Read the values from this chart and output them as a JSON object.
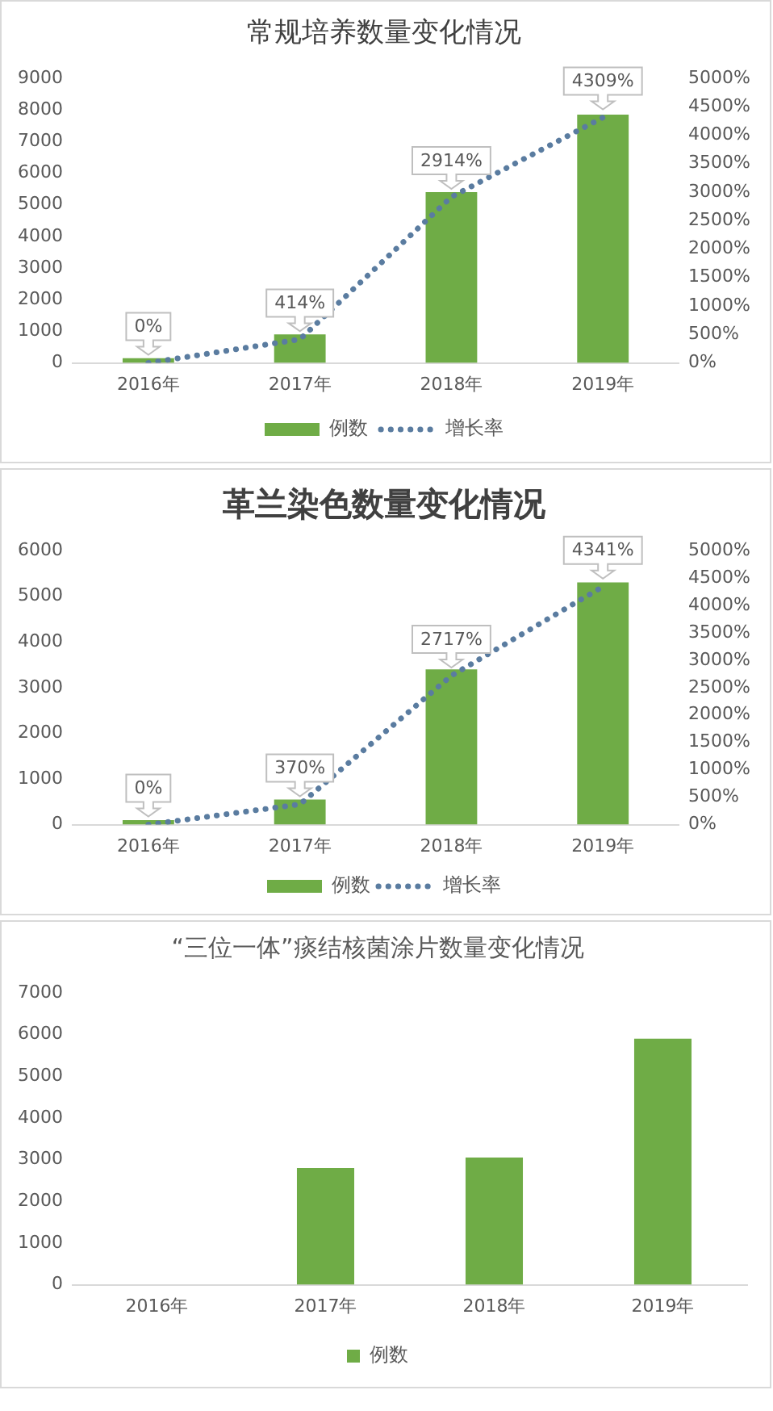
{
  "chart_data": [
    {
      "type": "bar",
      "title": "常规培养数量变化情况",
      "categories": [
        "2016年",
        "2017年",
        "2018年",
        "2019年"
      ],
      "series": [
        {
          "name": "例数",
          "color": "#6fac46",
          "values": [
            150,
            900,
            5400,
            7850
          ]
        },
        {
          "name": "增长率",
          "type": "line",
          "axis": "y2",
          "color": "#5a7ca0",
          "values": [
            0,
            414,
            2914,
            4309
          ],
          "value_labels": [
            "0%",
            "414%",
            "2914%",
            "4309%"
          ]
        }
      ],
      "ylim": [
        0,
        9000
      ],
      "yticks": [
        0,
        1000,
        2000,
        3000,
        4000,
        5000,
        6000,
        7000,
        8000,
        9000
      ],
      "y2lim": [
        0,
        5000
      ],
      "y2ticks": [
        {
          "value": 0,
          "label": "0%"
        },
        {
          "value": 500,
          "label": "500%"
        },
        {
          "value": 1000,
          "label": "1000%"
        },
        {
          "value": 1500,
          "label": "1500%"
        },
        {
          "value": 2000,
          "label": "2000%"
        },
        {
          "value": 2500,
          "label": "2500%"
        },
        {
          "value": 3000,
          "label": "3000%"
        },
        {
          "value": 3500,
          "label": "3500%"
        },
        {
          "value": 4000,
          "label": "4000%"
        },
        {
          "value": 4500,
          "label": "4500%"
        },
        {
          "value": 5000,
          "label": "5000%"
        }
      ],
      "grid": false,
      "legend": "bottom",
      "marker": "none",
      "line_style": "dotted"
    },
    {
      "type": "bar",
      "title": "革兰染色数量变化情况",
      "categories": [
        "2016年",
        "2017年",
        "2018年",
        "2019年"
      ],
      "series": [
        {
          "name": "例数",
          "color": "#6fac46",
          "values": [
            100,
            550,
            3400,
            5300
          ]
        },
        {
          "name": "增长率",
          "type": "line",
          "axis": "y2",
          "color": "#5a7ca0",
          "values": [
            0,
            370,
            2717,
            4341
          ],
          "value_labels": [
            "0%",
            "370%",
            "2717%",
            "4341%"
          ]
        }
      ],
      "ylim": [
        0,
        6000
      ],
      "yticks": [
        0,
        1000,
        2000,
        3000,
        4000,
        5000,
        6000
      ],
      "y2lim": [
        0,
        5000
      ],
      "y2ticks": [
        {
          "value": 0,
          "label": "0%"
        },
        {
          "value": 500,
          "label": "500%"
        },
        {
          "value": 1000,
          "label": "1000%"
        },
        {
          "value": 1500,
          "label": "1500%"
        },
        {
          "value": 2000,
          "label": "2000%"
        },
        {
          "value": 2500,
          "label": "2500%"
        },
        {
          "value": 3000,
          "label": "3000%"
        },
        {
          "value": 3500,
          "label": "3500%"
        },
        {
          "value": 4000,
          "label": "4000%"
        },
        {
          "value": 4500,
          "label": "4500%"
        },
        {
          "value": 5000,
          "label": "5000%"
        }
      ],
      "grid": false,
      "legend": "bottom",
      "marker": "none",
      "line_style": "dotted"
    },
    {
      "type": "bar",
      "title": "“三位一体”痰结核菌涂片数量变化情况",
      "categories": [
        "2016年",
        "2017年",
        "2018年",
        "2019年"
      ],
      "series": [
        {
          "name": "例数",
          "color": "#6fac46",
          "values": [
            null,
            2800,
            3050,
            5900
          ]
        }
      ],
      "ylim": [
        0,
        7000
      ],
      "yticks": [
        0,
        1000,
        2000,
        3000,
        4000,
        5000,
        6000,
        7000
      ],
      "grid": false,
      "legend": "bottom"
    }
  ]
}
